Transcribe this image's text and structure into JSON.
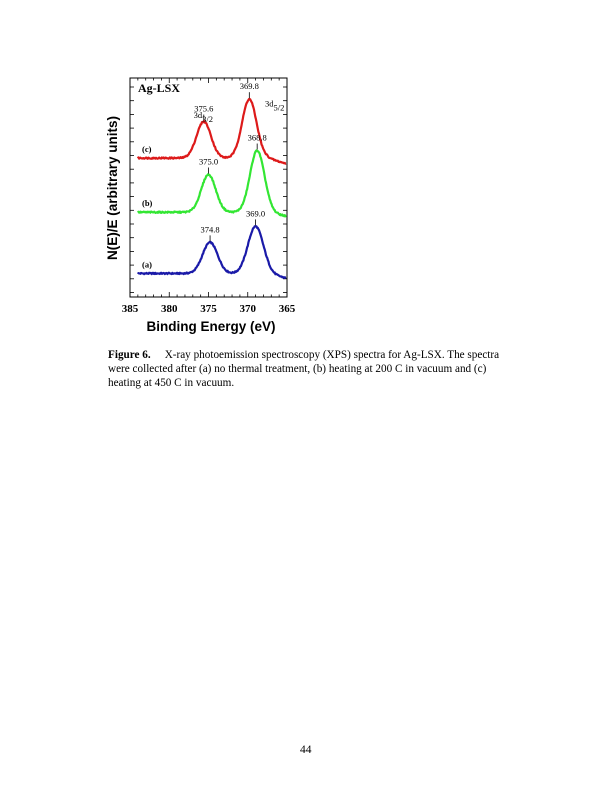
{
  "chart_data": {
    "type": "line",
    "title": "Ag-LSX",
    "xlabel": "Binding Energy (eV)",
    "ylabel": "N(E)/E (arbitrary units)",
    "xlim": [
      385,
      365
    ],
    "x_reversed": true,
    "x_ticks": [
      "385",
      "380",
      "375",
      "370",
      "365"
    ],
    "series": [
      {
        "label": "(a)",
        "color": "#1a1aa8",
        "baseline": 1.0,
        "peaks": [
          {
            "center": 374.8,
            "height": 1.32,
            "width": 0.95
          },
          {
            "center": 369.0,
            "height": 2.0,
            "width": 0.98
          }
        ],
        "tail_drop": 0.18,
        "peak_labels": [
          {
            "x": 374.8,
            "text": "374.8"
          },
          {
            "x": 369.0,
            "text": "369.0"
          }
        ]
      },
      {
        "label": "(b)",
        "color": "#33e633",
        "baseline": 3.6,
        "peaks": [
          {
            "center": 375.0,
            "height": 1.6,
            "width": 0.92
          },
          {
            "center": 368.8,
            "height": 2.62,
            "width": 0.92
          }
        ],
        "tail_drop": 0.15,
        "peak_labels": [
          {
            "x": 375.0,
            "text": "375.0"
          },
          {
            "x": 368.8,
            "text": "368.8"
          }
        ]
      },
      {
        "label": "(c)",
        "color": "#dd1a1a",
        "baseline": 5.9,
        "peaks": [
          {
            "center": 375.6,
            "height": 1.55,
            "width": 0.92
          },
          {
            "center": 369.8,
            "height": 2.5,
            "width": 0.92
          }
        ],
        "tail_drop": 0.22,
        "peak_labels": [
          {
            "x": 375.6,
            "text": "375.6"
          },
          {
            "x": 369.8,
            "text": "369.8"
          }
        ]
      }
    ],
    "annotations": [
      {
        "base": "3d",
        "sub": "3/2",
        "x": 376.9,
        "y": 7.6
      },
      {
        "base": "3d",
        "sub": "5/2",
        "x": 367.8,
        "y": 8.1
      }
    ],
    "ylim": [
      0,
      9.3
    ],
    "grid": false,
    "legend": "none"
  },
  "caption": {
    "label": "Figure 6.",
    "text": "X-ray photoemission spectroscopy (XPS) spectra for Ag-LSX.  The spectra were collected after (a) no thermal treatment, (b) heating at 200   C in vacuum and (c) heating at 450   C in vacuum."
  },
  "page_number": "44"
}
